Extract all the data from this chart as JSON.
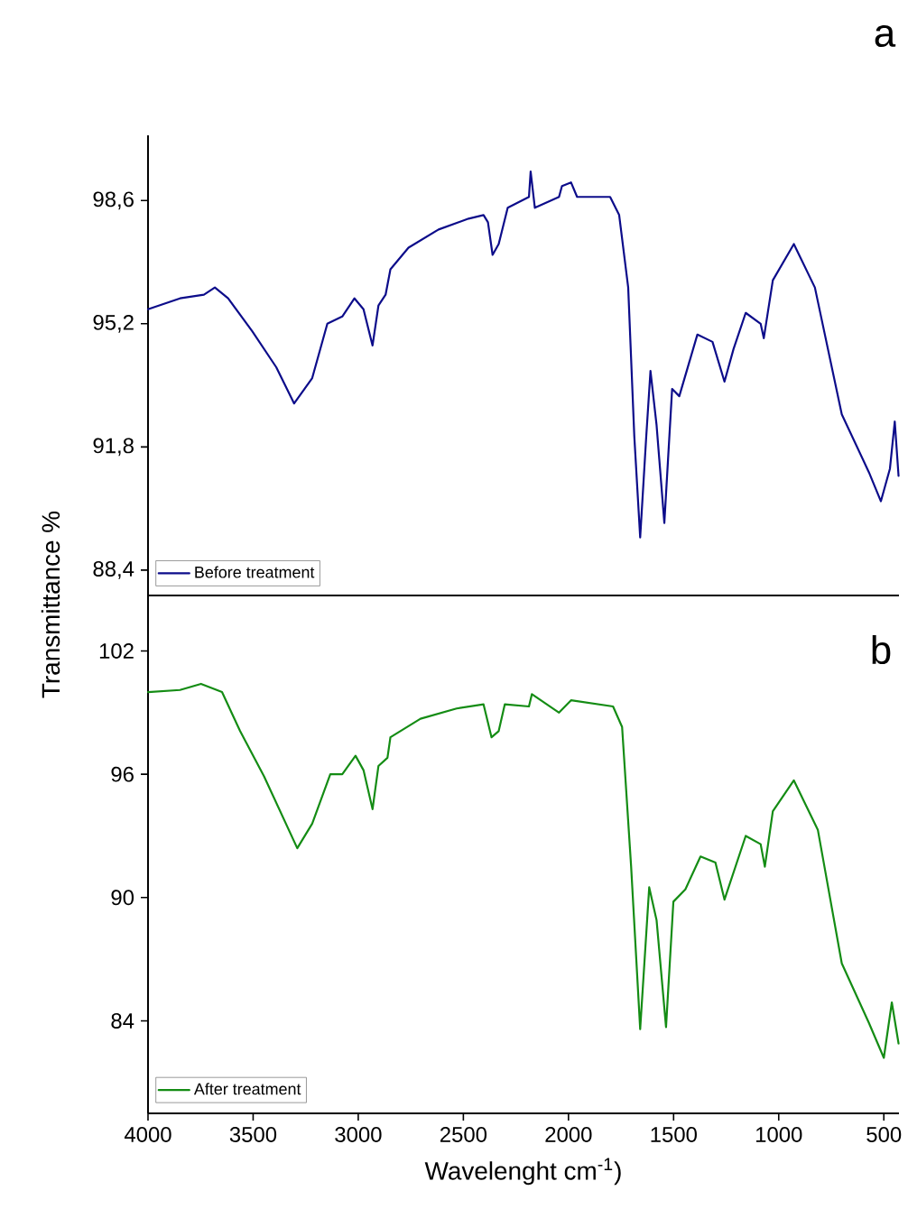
{
  "chart_data": [
    {
      "type": "line",
      "ylabel": "Transmittance %",
      "annotations": [
        "a"
      ],
      "legend": "bottom left",
      "tick_labels": "y",
      "xlim": [
        4000,
        428
      ],
      "ylim": [
        87.7,
        100.4
      ],
      "yticks": [
        {
          "value": 88.4,
          "label": "88,4"
        },
        {
          "value": 91.8,
          "label": "91,8"
        },
        {
          "value": 95.2,
          "label": "95,2"
        },
        {
          "value": 98.6,
          "label": "98,6"
        }
      ],
      "x": [
        4000,
        3848,
        3734,
        3682,
        3619,
        3505,
        3390,
        3305,
        3219,
        3147,
        3076,
        3018,
        2975,
        2932,
        2904,
        2870,
        2847,
        2761,
        2618,
        2475,
        2404,
        2383,
        2361,
        2332,
        2289,
        2188,
        2180,
        2160,
        2045,
        2031,
        1988,
        1959,
        1802,
        1759,
        1716,
        1687,
        1659,
        1630,
        1610,
        1581,
        1544,
        1507,
        1473,
        1387,
        1315,
        1258,
        1215,
        1157,
        1086,
        1071,
        1028,
        928,
        828,
        700,
        571,
        514,
        471,
        448,
        430
      ],
      "series": [
        {
          "name": "Before treatment",
          "color": "#0c0c8a",
          "values": [
            95.6,
            95.9,
            96.0,
            96.2,
            95.9,
            95.0,
            94.0,
            93.0,
            93.7,
            95.2,
            95.4,
            95.9,
            95.6,
            94.6,
            95.7,
            96.0,
            96.7,
            97.3,
            97.8,
            98.1,
            98.2,
            98.0,
            97.1,
            97.4,
            98.4,
            98.7,
            99.4,
            98.4,
            98.7,
            99.0,
            99.1,
            98.7,
            98.7,
            98.2,
            96.2,
            92.1,
            89.3,
            92.1,
            93.9,
            92.4,
            89.7,
            93.4,
            93.2,
            94.9,
            94.7,
            93.6,
            94.5,
            95.5,
            95.2,
            94.8,
            96.4,
            97.4,
            96.2,
            92.7,
            91.1,
            90.3,
            91.2,
            92.5,
            91.0
          ]
        }
      ]
    },
    {
      "type": "line",
      "xlabel": "Wavelenght cm$^{-1}$)",
      "annotations": [
        "b"
      ],
      "legend": "bottom left",
      "xlim": [
        4000,
        428
      ],
      "ylim": [
        79.5,
        104.7
      ],
      "xticks": [
        4000,
        3500,
        3000,
        2500,
        2000,
        1500,
        1000,
        500
      ],
      "yticks": [
        84,
        90,
        96,
        102
      ],
      "x": [
        4000,
        3848,
        3748,
        3648,
        3562,
        3448,
        3290,
        3219,
        3133,
        3076,
        3013,
        2975,
        2932,
        2904,
        2861,
        2847,
        2704,
        2532,
        2404,
        2366,
        2332,
        2303,
        2188,
        2174,
        2045,
        1988,
        1788,
        1745,
        1702,
        1659,
        1616,
        1581,
        1536,
        1501,
        1444,
        1372,
        1301,
        1258,
        1157,
        1086,
        1066,
        1028,
        928,
        814,
        700,
        571,
        500,
        462,
        430
      ],
      "series": [
        {
          "name": "After treatment",
          "color": "#148c14",
          "values": [
            100.0,
            100.1,
            100.4,
            100.0,
            98.1,
            95.9,
            92.4,
            93.6,
            96.0,
            96.0,
            96.9,
            96.2,
            94.3,
            96.4,
            96.8,
            97.8,
            98.7,
            99.2,
            99.4,
            97.8,
            98.1,
            99.4,
            99.3,
            99.9,
            99.0,
            99.6,
            99.3,
            98.3,
            91.5,
            83.6,
            90.5,
            88.9,
            83.7,
            89.8,
            90.4,
            92.0,
            91.7,
            89.9,
            93.0,
            92.6,
            91.5,
            94.2,
            95.7,
            93.3,
            86.8,
            83.9,
            82.2,
            84.9,
            82.9
          ]
        }
      ]
    }
  ]
}
